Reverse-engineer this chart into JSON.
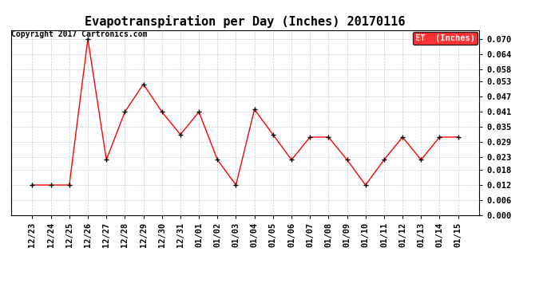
{
  "title": "Evapotranspiration per Day (Inches) 20170116",
  "copyright": "Copyright 2017 Cartronics.com",
  "legend_label": "ET  (Inches)",
  "x_labels": [
    "12/23",
    "12/24",
    "12/25",
    "12/26",
    "12/27",
    "12/28",
    "12/29",
    "12/30",
    "12/31",
    "01/01",
    "01/02",
    "01/03",
    "01/04",
    "01/05",
    "01/06",
    "01/07",
    "01/08",
    "01/09",
    "01/10",
    "01/11",
    "01/12",
    "01/13",
    "01/14",
    "01/15"
  ],
  "y_values": [
    0.012,
    0.012,
    0.012,
    0.07,
    0.022,
    0.041,
    0.052,
    0.041,
    0.032,
    0.041,
    0.022,
    0.012,
    0.042,
    0.032,
    0.022,
    0.031,
    0.031,
    0.022,
    0.012,
    0.022,
    0.031,
    0.022,
    0.031,
    0.031
  ],
  "line_color": "red",
  "marker_color": "black",
  "background_color": "#ffffff",
  "grid_color": "#cccccc",
  "ylim": [
    0.0,
    0.0735
  ],
  "yticks": [
    0.0,
    0.006,
    0.012,
    0.018,
    0.023,
    0.029,
    0.035,
    0.041,
    0.047,
    0.053,
    0.058,
    0.064,
    0.07
  ],
  "title_fontsize": 11,
  "tick_fontsize": 7.5,
  "copyright_fontsize": 7,
  "legend_bg": "#ff0000",
  "legend_text_color": "#ffffff",
  "legend_fontsize": 7.5
}
